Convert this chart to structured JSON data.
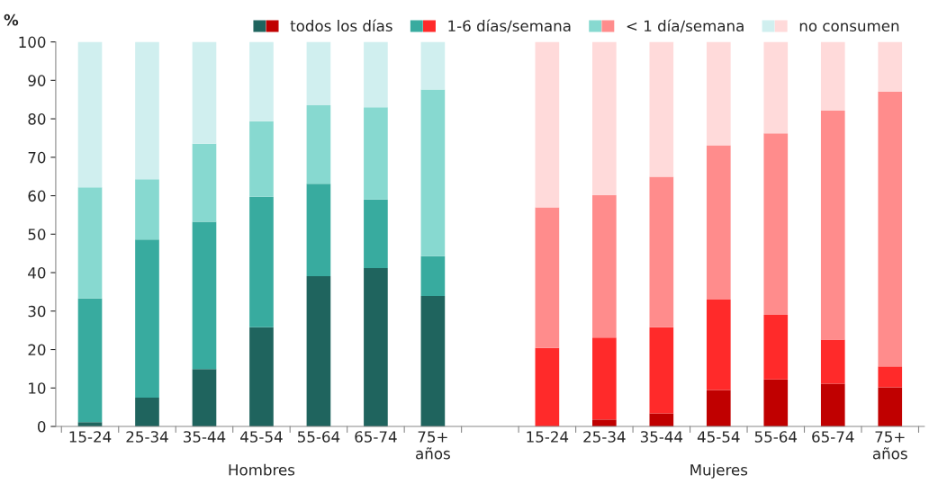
{
  "chart_data": {
    "type": "bar",
    "stacked": true,
    "ylabel": "%",
    "categories": [
      "15-24",
      "25-34",
      "35-44",
      "45-54",
      "55-64",
      "65-74",
      "75+\naños",
      null,
      "15-24",
      "25-34",
      "35-44",
      "45-54",
      "55-64",
      "65-74",
      "75+\naños"
    ],
    "series": [
      {
        "name": "todos los días",
        "colors": [
          "#1f645e",
          "#1f645e",
          "#1f645e",
          "#1f645e",
          "#1f645e",
          "#1f645e",
          "#1f645e",
          "#1f645e",
          "#c00000",
          "#c00000",
          "#c00000",
          "#c00000",
          "#c00000",
          "#c00000",
          "#c00000"
        ],
        "values": [
          1.1,
          7.5,
          14.9,
          25.8,
          39.1,
          41.2,
          33.9,
          null,
          0,
          1.8,
          3.4,
          9.5,
          12.2,
          11.1,
          10.2
        ]
      },
      {
        "name": "1-6 días/semana",
        "colors": [
          "#38ab9f",
          "#38ab9f",
          "#38ab9f",
          "#38ab9f",
          "#38ab9f",
          "#38ab9f",
          "#38ab9f",
          "#38ab9f",
          "#ff2a2a",
          "#ff2a2a",
          "#ff2a2a",
          "#ff2a2a",
          "#ff2a2a",
          "#ff2a2a",
          "#ff2a2a"
        ],
        "values": [
          32.2,
          41.1,
          38.3,
          33.9,
          24.0,
          17.8,
          10.4,
          null,
          20.4,
          21.3,
          22.4,
          23.5,
          16.8,
          11.5,
          5.4
        ]
      },
      {
        "name": "< 1 día/semana",
        "colors": [
          "#87d9d0",
          "#87d9d0",
          "#87d9d0",
          "#87d9d0",
          "#87d9d0",
          "#87d9d0",
          "#87d9d0",
          "#87d9d0",
          "#ff8c8c",
          "#ff8c8c",
          "#ff8c8c",
          "#ff8c8c",
          "#ff8c8c",
          "#ff8c8c",
          "#ff8c8c"
        ],
        "values": [
          28.9,
          15.7,
          20.3,
          19.7,
          20.4,
          24.0,
          43.3,
          null,
          36.6,
          37.1,
          39.1,
          40.1,
          47.2,
          59.5,
          71.5
        ]
      },
      {
        "name": "no consumen",
        "colors": [
          "#d0efef",
          "#d0efef",
          "#d0efef",
          "#d0efef",
          "#d0efef",
          "#d0efef",
          "#d0efef",
          "#d0efef",
          "#ffdada",
          "#ffdada",
          "#ffdada",
          "#ffdada",
          "#ffdada",
          "#ffdada",
          "#ffdada"
        ],
        "values": [
          37.8,
          35.7,
          26.5,
          20.6,
          16.5,
          17.0,
          12.4,
          null,
          43.0,
          39.8,
          35.1,
          26.9,
          23.8,
          17.9,
          12.9
        ]
      }
    ],
    "annotations": [
      "Hombres",
      "Mujeres"
    ],
    "ylim": [
      0,
      100
    ],
    "yticks": [
      0,
      10,
      20,
      30,
      40,
      50,
      60,
      70,
      80,
      90,
      100
    ],
    "grid": false,
    "legend": "top"
  }
}
